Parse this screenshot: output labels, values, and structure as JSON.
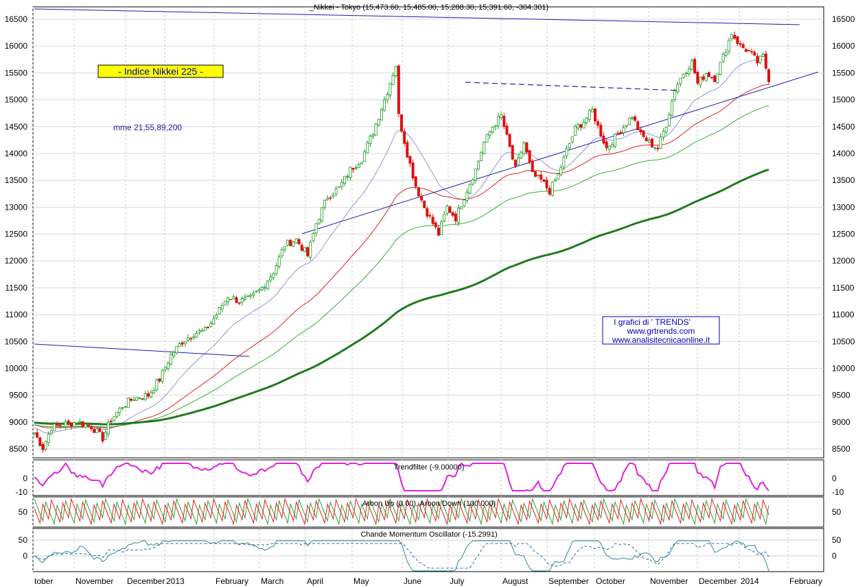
{
  "chart_data": [
    {
      "type": "candlestick",
      "title": "_Nikkei - Tokyo (15,473.60, 15,485.00, 15,288.30, 15,391.60, -304.301)",
      "panel_label": "- Indice Nikkei 225 -",
      "ma_label": "mme 21,55,89,200",
      "watermark": [
        "I grafici di ' TRENDS'",
        "www.grtrends.com",
        "www.analisitecnicaonline.it"
      ],
      "y_ticks": [
        16500,
        16000,
        15500,
        15000,
        14500,
        14000,
        13500,
        13000,
        12500,
        12000,
        11500,
        11000,
        10500,
        10000,
        9500,
        9000,
        8500
      ],
      "ylim": [
        8300,
        16750
      ],
      "x_labels": [
        "tober",
        "November",
        "December",
        "2013",
        "February",
        "March",
        "April",
        "May",
        "June",
        "July",
        "August",
        "September",
        "October",
        "November",
        "December",
        "2014",
        "February"
      ],
      "close_series": [
        {
          "day": 0,
          "close": 8800
        },
        {
          "day": 3,
          "close": 8520
        },
        {
          "day": 6,
          "close": 8900
        },
        {
          "day": 10,
          "close": 8950
        },
        {
          "day": 15,
          "close": 9000
        },
        {
          "day": 20,
          "close": 8920
        },
        {
          "day": 24,
          "close": 8700
        },
        {
          "day": 27,
          "close": 9050
        },
        {
          "day": 31,
          "close": 9300
        },
        {
          "day": 35,
          "close": 9450
        },
        {
          "day": 40,
          "close": 9500
        },
        {
          "day": 44,
          "close": 9800
        },
        {
          "day": 48,
          "close": 10250
        },
        {
          "day": 52,
          "close": 10500
        },
        {
          "day": 56,
          "close": 10650
        },
        {
          "day": 60,
          "close": 10700
        },
        {
          "day": 64,
          "close": 11000
        },
        {
          "day": 68,
          "close": 11350
        },
        {
          "day": 72,
          "close": 11250
        },
        {
          "day": 76,
          "close": 11300
        },
        {
          "day": 80,
          "close": 11500
        },
        {
          "day": 84,
          "close": 11800
        },
        {
          "day": 88,
          "close": 12300
        },
        {
          "day": 92,
          "close": 12400
        },
        {
          "day": 96,
          "close": 12100
        },
        {
          "day": 99,
          "close": 12700
        },
        {
          "day": 103,
          "close": 13200
        },
        {
          "day": 107,
          "close": 13350
        },
        {
          "day": 111,
          "close": 13700
        },
        {
          "day": 115,
          "close": 13900
        },
        {
          "day": 119,
          "close": 14400
        },
        {
          "day": 123,
          "close": 15000
        },
        {
          "day": 127,
          "close": 15650
        },
        {
          "day": 128,
          "close": 14700
        },
        {
          "day": 131,
          "close": 14000
        },
        {
          "day": 134,
          "close": 13400
        },
        {
          "day": 137,
          "close": 13000
        },
        {
          "day": 140,
          "close": 12700
        },
        {
          "day": 142,
          "close": 12500
        },
        {
          "day": 145,
          "close": 13000
        },
        {
          "day": 148,
          "close": 12800
        },
        {
          "day": 151,
          "close": 13200
        },
        {
          "day": 155,
          "close": 13700
        },
        {
          "day": 158,
          "close": 14200
        },
        {
          "day": 161,
          "close": 14500
        },
        {
          "day": 164,
          "close": 14700
        },
        {
          "day": 166,
          "close": 14300
        },
        {
          "day": 169,
          "close": 13700
        },
        {
          "day": 172,
          "close": 14200
        },
        {
          "day": 175,
          "close": 13600
        },
        {
          "day": 178,
          "close": 13500
        },
        {
          "day": 181,
          "close": 13300
        },
        {
          "day": 184,
          "close": 13600
        },
        {
          "day": 187,
          "close": 14050
        },
        {
          "day": 190,
          "close": 14450
        },
        {
          "day": 193,
          "close": 14600
        },
        {
          "day": 196,
          "close": 14800
        },
        {
          "day": 198,
          "close": 14500
        },
        {
          "day": 201,
          "close": 14100
        },
        {
          "day": 204,
          "close": 14300
        },
        {
          "day": 207,
          "close": 14500
        },
        {
          "day": 210,
          "close": 14700
        },
        {
          "day": 213,
          "close": 14350
        },
        {
          "day": 216,
          "close": 14200
        },
        {
          "day": 219,
          "close": 14100
        },
        {
          "day": 222,
          "close": 14550
        },
        {
          "day": 225,
          "close": 15200
        },
        {
          "day": 228,
          "close": 15500
        },
        {
          "day": 231,
          "close": 15700
        },
        {
          "day": 233,
          "close": 15300
        },
        {
          "day": 236,
          "close": 15500
        },
        {
          "day": 239,
          "close": 15400
        },
        {
          "day": 242,
          "close": 15800
        },
        {
          "day": 245,
          "close": 16250
        },
        {
          "day": 248,
          "close": 16000
        },
        {
          "day": 251,
          "close": 15900
        },
        {
          "day": 254,
          "close": 15700
        },
        {
          "day": 256,
          "close": 15800
        },
        {
          "day": 258,
          "close": 15392
        }
      ],
      "moving_averages": [
        "EMA 21",
        "EMA 55",
        "EMA 89",
        "EMA 200"
      ],
      "ma_colors": [
        "#7a7ad8",
        "#e02020",
        "#3aaa3a",
        "#1e7a1e"
      ],
      "indicators": [
        {
          "name": "Trendfilter (-9.00000)",
          "type": "line",
          "y_ticks": [
            0,
            -10
          ],
          "color": "#e020e0"
        },
        {
          "name": "Aroon Up (0.00), Aroon Down (100.000)",
          "type": "line",
          "y_ticks": [
            50
          ],
          "colors": [
            "#30a030",
            "#e02020"
          ]
        },
        {
          "name": "Chande Momentum Oscillator (-15.2991)",
          "type": "line",
          "y_ticks": [
            50,
            0
          ],
          "color": "#2a8a8a"
        }
      ]
    }
  ]
}
